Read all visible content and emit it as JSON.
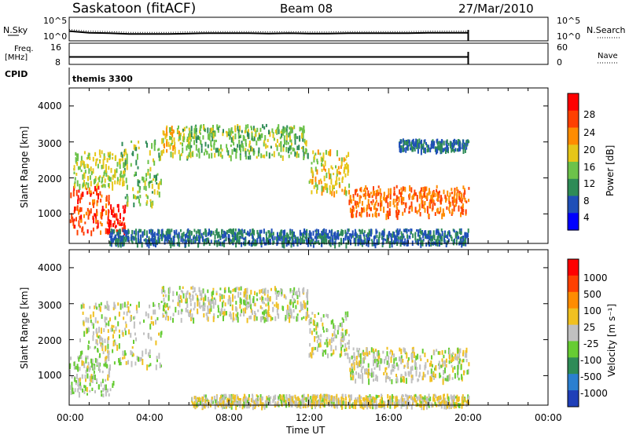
{
  "header": {
    "station": "Saskatoon (fitACF)",
    "beam": "Beam 08",
    "date": "27/Mar/2010"
  },
  "noise_panel": {
    "left_label": "N.Sky",
    "right_label": "N.Search",
    "left_ticks": [
      "10^5",
      "10^0"
    ],
    "right_ticks": [
      "10^5",
      "10^0"
    ]
  },
  "freq_panel": {
    "left_label_line1": "Freq.",
    "left_label_line2": "[MHz]",
    "right_label": "Nave",
    "left_ticks": [
      "16",
      "8"
    ],
    "right_ticks": [
      "60",
      "0"
    ]
  },
  "cpid": {
    "label": "CPID",
    "value": "themis 3300"
  },
  "power_panel": {
    "ylabel": "Slant Range [km]",
    "yticks": [
      "4000",
      "3000",
      "2000",
      "1000"
    ],
    "colorbar_label": "Power [dB]",
    "colorbar_ticks": [
      "28",
      "24",
      "20",
      "16",
      "12",
      "8",
      "4"
    ],
    "colors": [
      "#0000ff",
      "#1f4fb8",
      "#2e8b57",
      "#6cc24a",
      "#e6c619",
      "#ff8c00",
      "#ff4000",
      "#ff0000"
    ]
  },
  "velocity_panel": {
    "ylabel": "Slant Range [km]",
    "yticks": [
      "4000",
      "3000",
      "2000",
      "1000"
    ],
    "colorbar_label": "Velocity [m s⁻¹]",
    "colorbar_ticks": [
      "1000",
      "500",
      "100",
      "25",
      "-25",
      "-100",
      "-500",
      "-1000"
    ],
    "colors": [
      "#1f3fb8",
      "#2b7fd0",
      "#2e8b57",
      "#66cc33",
      "#c0c0c0",
      "#f0c020",
      "#ff8c00",
      "#ff4000",
      "#ff0000"
    ]
  },
  "x_axis": {
    "label": "Time UT",
    "ticks": [
      "00:00",
      "04:00",
      "08:00",
      "12:00",
      "16:00",
      "20:00",
      "00:00"
    ]
  },
  "chart_data": {
    "type": "heatmap",
    "title": "Saskatoon (fitACF)  Beam 08  27/Mar/2010",
    "xlabel": "Time UT",
    "ylabel": "Slant Range [km]",
    "xlim": [
      "00:00",
      "24:00"
    ],
    "ylim": [
      180,
      4500
    ],
    "data_end_time": "20:00",
    "panels": [
      {
        "name": "Power [dB]",
        "color_range": [
          0,
          32
        ],
        "scatter_bands": [
          {
            "t0": 0.0,
            "t1": 2.0,
            "range_km": [
              500,
              1800
            ],
            "value_db": 26
          },
          {
            "t0": 0.2,
            "t1": 2.8,
            "range_km": [
              1800,
              2800
            ],
            "value_db": 16
          },
          {
            "t0": 1.8,
            "t1": 2.8,
            "range_km": [
              500,
              1300
            ],
            "value_db": 30
          },
          {
            "t0": 2.5,
            "t1": 4.6,
            "range_km": [
              1300,
              3100
            ],
            "value_db": 14
          },
          {
            "t0": 4.6,
            "t1": 5.5,
            "range_km": [
              2700,
              3500
            ],
            "value_db": 18
          },
          {
            "t0": 5.5,
            "t1": 12.0,
            "range_km": [
              2600,
              3500
            ],
            "value_db": 14
          },
          {
            "t0": 12.0,
            "t1": 14.0,
            "range_km": [
              1600,
              2800
            ],
            "value_db": 18
          },
          {
            "t0": 14.0,
            "t1": 20.0,
            "range_km": [
              1000,
              1800
            ],
            "value_db": 24
          },
          {
            "t0": 2.0,
            "t1": 20.0,
            "range_km": [
              200,
              600
            ],
            "value_db": 8
          },
          {
            "t0": 16.5,
            "t1": 20.0,
            "range_km": [
              2800,
              3100
            ],
            "value_db": 8
          }
        ]
      },
      {
        "name": "Velocity [m s-1]",
        "color_range": [
          -1000,
          1000
        ],
        "scatter_bands": [
          {
            "t0": 0.0,
            "t1": 2.2,
            "range_km": [
              500,
              1600
            ],
            "value_ms": 80
          },
          {
            "t0": 0.5,
            "t1": 4.6,
            "range_km": [
              1300,
              3100
            ],
            "value_ms": 0
          },
          {
            "t0": 4.6,
            "t1": 12.0,
            "range_km": [
              2600,
              3500
            ],
            "value_ms": 0
          },
          {
            "t0": 12.0,
            "t1": 14.0,
            "range_km": [
              1600,
              2800
            ],
            "value_ms": 0
          },
          {
            "t0": 14.0,
            "t1": 20.0,
            "range_km": [
              900,
              1800
            ],
            "value_ms": 0
          },
          {
            "t0": 6.0,
            "t1": 20.0,
            "range_km": [
              200,
              500
            ],
            "value_ms": -60
          }
        ]
      }
    ],
    "noise_sky_log": [
      2.0,
      1.6,
      1.5,
      1.3,
      1.3,
      1.3,
      1.4,
      1.5,
      1.5,
      1.5,
      1.4,
      1.5,
      1.4,
      1.4,
      1.5,
      1.5,
      1.5,
      1.5,
      1.6,
      1.6,
      1.6
    ],
    "freq_mhz": [
      10.5,
      10.5,
      10.5,
      10.5,
      10.5,
      10.5,
      10.5,
      10.5,
      10.5,
      10.5,
      10.5,
      10.5,
      10.5,
      10.5,
      10.5,
      10.5,
      10.5,
      10.5,
      10.5,
      10.5,
      10.5
    ],
    "nave": [
      18,
      18,
      18,
      18,
      18,
      18,
      18,
      18,
      18,
      18,
      18,
      18,
      18,
      18,
      18,
      18,
      18,
      18,
      18,
      18,
      18
    ]
  }
}
